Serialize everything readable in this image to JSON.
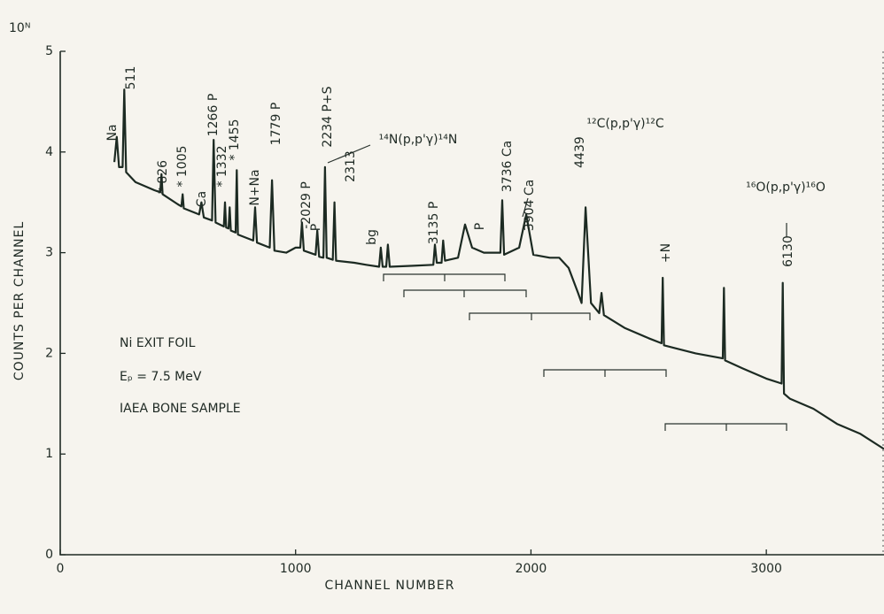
{
  "chart_data": {
    "type": "line",
    "corner_label": "10ᴺ",
    "xlabel": "CHANNEL NUMBER",
    "ylabel": "COUNTS PER CHANNEL",
    "notes": [
      "Ni  EXIT  FOIL",
      "Eₚ =  7.5 MeV",
      "IAEA BONE SAMPLE"
    ],
    "annotations": [
      "Na",
      "511",
      "* 826",
      "* 1005",
      "Ca",
      "1266 P",
      "* 1332",
      "* 1455",
      "N+Na",
      "1779 P",
      "-2029 P",
      "P",
      "2234 P+S",
      "2313",
      "¹⁴N(p,p'γ)¹⁴N",
      "bg",
      "3135 P",
      "P",
      "3736 Ca",
      "3904 Ca",
      "¹²C(p,p'γ)¹²C",
      "4439",
      "+N",
      "¹⁶O(p,p'γ)¹⁶O",
      "6130"
    ],
    "xlim": [
      0,
      3500
    ],
    "ylim": [
      0,
      5
    ],
    "xticks": [
      0,
      1000,
      2000,
      3000
    ],
    "yticks": [
      0,
      1,
      2,
      3,
      4,
      5
    ],
    "color": "#1c2a22",
    "x": [
      230,
      240,
      250,
      265,
      272,
      280,
      320,
      400,
      425,
      430,
      435,
      500,
      515,
      520,
      525,
      590,
      600,
      610,
      645,
      652,
      660,
      695,
      700,
      705,
      715,
      720,
      725,
      745,
      750,
      755,
      820,
      828,
      836,
      890,
      900,
      910,
      960,
      1000,
      1020,
      1027,
      1035,
      1085,
      1092,
      1100,
      1118,
      1125,
      1132,
      1158,
      1165,
      1172,
      1250,
      1300,
      1355,
      1362,
      1370,
      1385,
      1392,
      1400,
      1500,
      1585,
      1592,
      1600,
      1620,
      1627,
      1635,
      1690,
      1720,
      1750,
      1800,
      1870,
      1878,
      1886,
      1950,
      1980,
      2010,
      2080,
      2120,
      2160,
      2200,
      2215,
      2232,
      2255,
      2290,
      2300,
      2310,
      2400,
      2500,
      2555,
      2560,
      2565,
      2700,
      2815,
      2820,
      2825,
      2900,
      3000,
      3065,
      3070,
      3075,
      3100,
      3200,
      3300,
      3400,
      3500
    ],
    "values": [
      3.9,
      4.15,
      3.85,
      3.85,
      4.62,
      3.8,
      3.7,
      3.62,
      3.6,
      3.78,
      3.58,
      3.48,
      3.46,
      3.58,
      3.44,
      3.38,
      3.5,
      3.35,
      3.32,
      4.12,
      3.3,
      3.26,
      3.5,
      3.25,
      3.24,
      3.45,
      3.22,
      3.2,
      3.82,
      3.18,
      3.12,
      3.45,
      3.1,
      3.05,
      3.72,
      3.02,
      3.0,
      3.05,
      3.05,
      3.3,
      3.02,
      2.98,
      3.22,
      2.96,
      2.95,
      3.85,
      2.95,
      2.93,
      3.5,
      2.92,
      2.9,
      2.88,
      2.86,
      3.05,
      2.86,
      2.86,
      3.08,
      2.86,
      2.87,
      2.88,
      3.08,
      2.9,
      2.9,
      3.12,
      2.92,
      2.95,
      3.28,
      3.05,
      3.0,
      3.0,
      3.52,
      2.98,
      3.05,
      3.38,
      2.98,
      2.95,
      2.95,
      2.85,
      2.6,
      2.5,
      3.45,
      2.5,
      2.4,
      2.6,
      2.38,
      2.25,
      2.15,
      2.1,
      2.75,
      2.08,
      2.0,
      1.95,
      2.65,
      1.93,
      1.85,
      1.75,
      1.7,
      2.7,
      1.6,
      1.55,
      1.45,
      1.3,
      1.2,
      1.05
    ]
  }
}
